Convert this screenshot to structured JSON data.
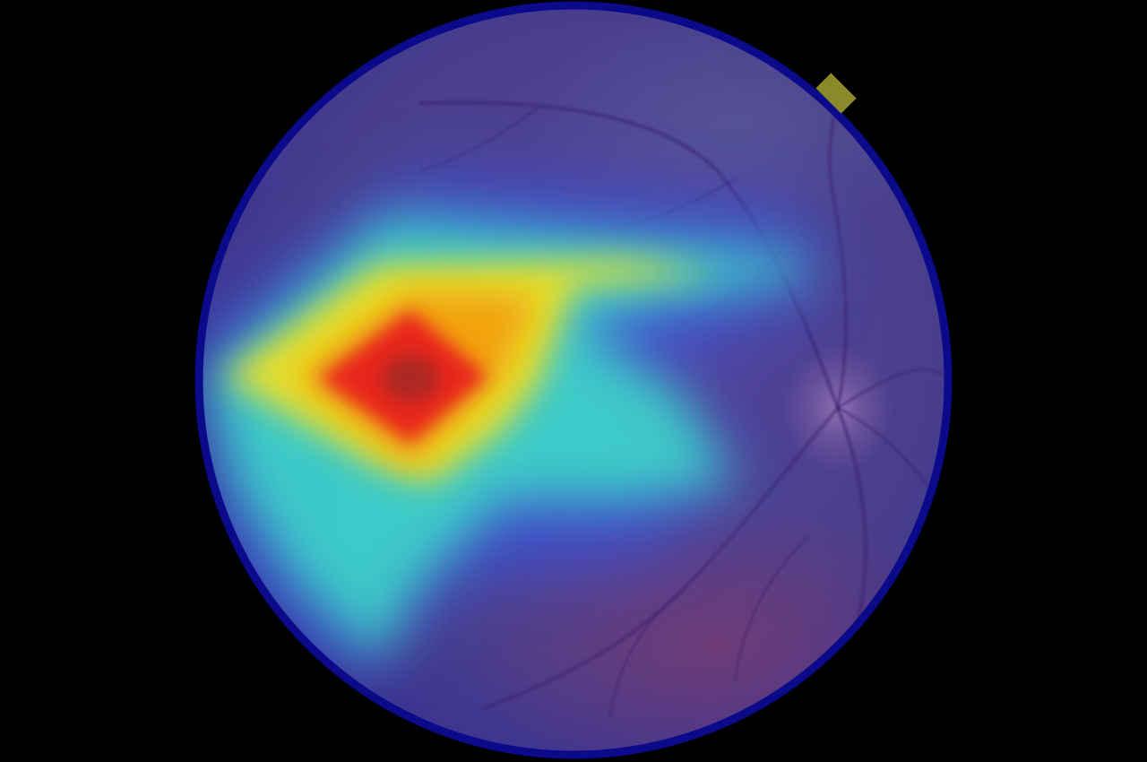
{
  "image": {
    "subject": "fundus-photograph-with-heatmap-overlay",
    "colors": {
      "background": "#000000",
      "rim": "#0a0a8a",
      "fundus_base": "#4a3f8c",
      "fundus_lower_tint": "#6a3a78",
      "heat_hot": "#e8261c",
      "heat_warm": "#f2a20c",
      "heat_yellow": "#f0e020",
      "heat_cyan": "#3ee0c8",
      "heat_cool": "#3a55e0",
      "notch": "#8a8a2a",
      "vessel": "#3a1e6a",
      "optic_disc": "#8a6aa8"
    },
    "icons": [
      "retina-image",
      "heatmap-overlay",
      "optic-disc",
      "blood-vessel"
    ]
  }
}
